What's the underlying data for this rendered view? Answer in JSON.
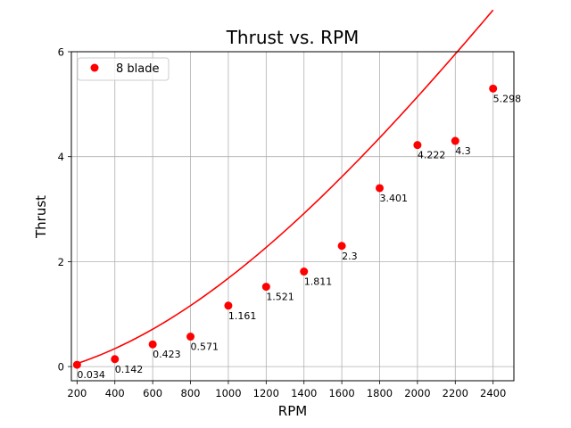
{
  "chart_data": {
    "type": "scatter",
    "title": "Thrust vs. RPM",
    "xlabel": "RPM",
    "ylabel": "Thrust",
    "xlim": [
      170,
      2510
    ],
    "ylim": [
      -0.27,
      6
    ],
    "xticks": [
      200,
      400,
      600,
      800,
      1000,
      1200,
      1400,
      1600,
      1800,
      2000,
      2200,
      2400
    ],
    "yticks": [
      0,
      2,
      4,
      6
    ],
    "grid": true,
    "legend_position": "top-left",
    "series": [
      {
        "name": "8 blade",
        "color": "#ff0000",
        "marker": "circle",
        "x": [
          200,
          400,
          600,
          800,
          1000,
          1200,
          1400,
          1600,
          1800,
          2000,
          2200,
          2400
        ],
        "y": [
          0.034,
          0.142,
          0.423,
          0.571,
          1.161,
          1.521,
          1.811,
          2.3,
          3.401,
          4.222,
          4.3,
          5.298
        ],
        "labels": [
          "0.034",
          "0.142",
          "0.423",
          "0.571",
          "1.161",
          "1.521",
          "1.811",
          "2.3",
          "3.401",
          "4.222",
          "4.3",
          "5.298"
        ]
      }
    ],
    "fit_curve": {
      "color": "#ff0000",
      "type": "cubic",
      "coefficients": [
        -0.1337,
        0.0007156,
        1.243e-06,
        -1.41e-10
      ]
    }
  }
}
